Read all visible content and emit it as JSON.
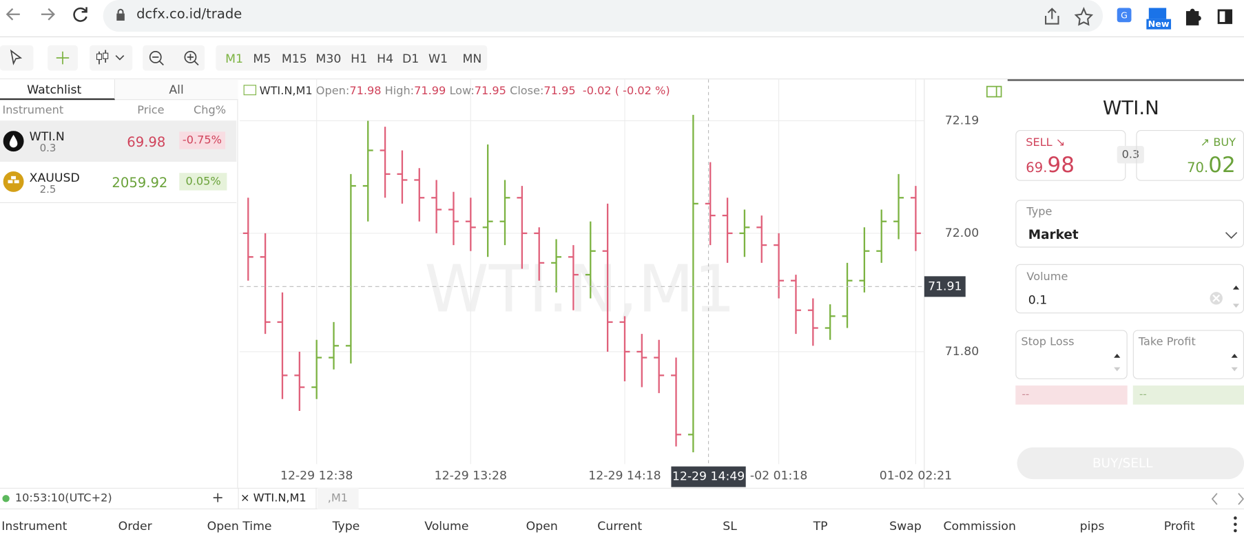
{
  "browser": {
    "url": "dcfx.co.id/trade",
    "extension_badge": "New"
  },
  "toolbar": {
    "timeframes": [
      "M1",
      "M5",
      "M15",
      "M30",
      "H1",
      "H4",
      "D1",
      "W1",
      "MN"
    ]
  },
  "watchlist": {
    "tabs": [
      "Watchlist",
      "All"
    ],
    "columns": [
      "Instrument",
      "Price",
      "Chg%"
    ],
    "rows": [
      {
        "symbol": "WTI.N",
        "spread": "0.3",
        "price": "69.98",
        "change": "-0.75%"
      },
      {
        "symbol": "XAUUSD",
        "spread": "2.5",
        "price": "2059.92",
        "change": "0.05%"
      }
    ]
  },
  "status": {
    "time": "10:53:10(UTC+2)",
    "add": "+"
  },
  "chart_data": {
    "type": "ohlc",
    "symbol": "WTI.N,M1",
    "info": {
      "open_label": "Open:",
      "open": "71.98",
      "high_label": "High:",
      "high": "71.99",
      "low_label": "Low:",
      "low": "71.95",
      "close_label": "Close:",
      "close": "71.95",
      "change": "-0.02",
      "change_pct": "( -0.02 %)"
    },
    "categories": [
      null,
      null,
      null,
      null,
      "12-29 12:38",
      null,
      null,
      null,
      null,
      null,
      null,
      null,
      null,
      "12-29 13:28",
      null,
      null,
      null,
      null,
      null,
      null,
      null,
      null,
      "12-29 14:18",
      null,
      null,
      null,
      null,
      null,
      null,
      null,
      null,
      "-02 01:18",
      null,
      null,
      null,
      null,
      null,
      null,
      null,
      "01-02 02:21"
    ],
    "open": [
      72.0,
      71.96,
      71.85,
      71.76,
      71.74,
      71.79,
      71.81,
      72.08,
      72.14,
      72.1,
      72.09,
      72.06,
      72.04,
      72.02,
      72.01,
      72.02,
      72.06,
      72.0,
      71.95,
      71.96,
      71.93,
      71.97,
      71.85,
      71.8,
      71.79,
      71.76,
      71.66,
      72.05,
      72.03,
      72.0,
      72.01,
      71.98,
      71.92,
      71.87,
      71.84,
      71.86,
      71.92,
      71.97,
      72.02,
      72.06
    ],
    "high": [
      72.06,
      72.0,
      71.9,
      71.8,
      71.82,
      71.85,
      72.1,
      72.19,
      72.18,
      72.14,
      72.11,
      72.09,
      72.07,
      72.06,
      72.15,
      72.09,
      72.08,
      72.01,
      71.99,
      71.98,
      72.02,
      72.05,
      71.86,
      71.83,
      71.82,
      71.79,
      72.2,
      72.12,
      72.06,
      72.04,
      72.03,
      72.0,
      71.93,
      71.89,
      71.88,
      71.95,
      72.01,
      72.04,
      72.1,
      72.08
    ],
    "low": [
      71.92,
      71.83,
      71.72,
      71.7,
      71.72,
      71.77,
      71.78,
      72.02,
      72.06,
      72.05,
      72.02,
      72.0,
      71.98,
      71.97,
      71.96,
      71.98,
      71.94,
      71.92,
      71.9,
      71.87,
      71.89,
      71.8,
      71.75,
      71.74,
      71.73,
      71.64,
      71.63,
      71.98,
      71.95,
      71.96,
      71.95,
      71.89,
      71.83,
      71.81,
      71.82,
      71.84,
      71.9,
      71.95,
      71.99,
      71.97
    ],
    "close": [
      71.96,
      71.85,
      71.76,
      71.74,
      71.79,
      71.81,
      72.08,
      72.14,
      72.1,
      72.09,
      72.06,
      72.04,
      72.02,
      72.01,
      72.02,
      72.06,
      72.0,
      71.95,
      71.96,
      71.93,
      71.97,
      71.85,
      71.8,
      71.79,
      71.76,
      71.66,
      72.05,
      72.03,
      72.0,
      72.01,
      71.98,
      71.92,
      71.87,
      71.84,
      71.86,
      71.92,
      71.97,
      72.02,
      72.06,
      72.0
    ],
    "up_color": "#7cb342",
    "down_color": "#e0607a",
    "ylim": [
      71.57,
      72.26
    ],
    "yticks": [
      72.19,
      {
        "value": 72,
        "label": "72.00"
      },
      {
        "value": 71.8,
        "label": "71.80"
      }
    ],
    "last_price": 71.91,
    "crosshair_time": "12-29 14:49",
    "grid": true
  },
  "order_panel": {
    "symbol": "WTI.N",
    "sell_label": "SELL",
    "sell_price_small": "69.",
    "sell_price_big": "98",
    "spread": "0.3",
    "buy_label": "BUY",
    "buy_price_small": "70.",
    "buy_price_big": "02",
    "type_label": "Type",
    "type_value": "Market",
    "volume_label": "Volume",
    "volume_value": "0.1",
    "stop_loss_label": "Stop Loss",
    "take_profit_label": "Take Profit",
    "stop_loss_value": "--",
    "take_profit_value": "--",
    "button": "BUY/SELL"
  },
  "bottom_tabs": [
    "WTI.N,M1",
    ",M1"
  ],
  "positions_table": {
    "columns": [
      "Instrument",
      "Order",
      "Open Time",
      "Type",
      "Volume",
      "Open",
      "Current",
      "SL",
      "TP",
      "Swap",
      "Commission",
      "pips",
      "Profit"
    ]
  }
}
